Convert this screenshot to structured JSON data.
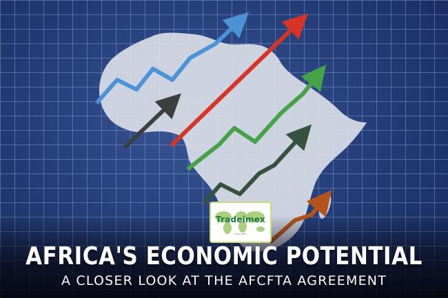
{
  "banner": {
    "headline": "AFRICA'S ECONOMIC POTENTIAL",
    "subheadline": "A CLOSER LOOK AT THE AFCFTA AGREEMENT"
  },
  "logo": {
    "brand": "Tradeimex",
    "tagline": "Since 2003-"
  },
  "colors": {
    "background": "#26407c",
    "grid": "#afc3eb",
    "continent": "#d9dde6",
    "arrow_blue": "#4b92d6",
    "arrow_red": "#d63426",
    "arrow_green": "#45a247",
    "arrow_dark_gray": "#3b3f3e",
    "arrow_dark_green": "#37513f",
    "arrow_orange": "#b5541a",
    "logo_green": "#1e7a3a"
  },
  "icons": [
    "africa-map-icon",
    "growth-arrow-icon",
    "world-map-icon"
  ]
}
